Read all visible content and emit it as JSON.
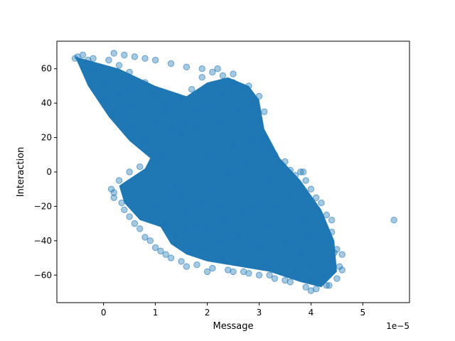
{
  "chart_data": {
    "type": "scatter",
    "xlabel": "Message",
    "ylabel": "Interaction",
    "x_offset_label": "1e−5",
    "x_scale": 1e-05,
    "xlim": [
      -0.9,
      5.9
    ],
    "ylim": [
      -76,
      76
    ],
    "x_ticks": [
      0,
      1,
      2,
      3,
      4,
      5
    ],
    "y_ticks": [
      -60,
      -40,
      -20,
      0,
      20,
      40,
      60
    ],
    "x_tick_labels": [
      "0",
      "1",
      "2",
      "3",
      "4",
      "5"
    ],
    "y_tick_labels": [
      "−60",
      "−40",
      "−20",
      "0",
      "20",
      "40",
      "60"
    ],
    "grid": false,
    "legend": "none",
    "marker_color": "#1f77b4",
    "marker_alpha": 0.4,
    "points": [
      [
        -0.55,
        66
      ],
      [
        -0.4,
        68
      ],
      [
        -0.3,
        65
      ],
      [
        -0.5,
        67
      ],
      [
        -0.2,
        66
      ],
      [
        0.1,
        65
      ],
      [
        0.3,
        62
      ],
      [
        0.5,
        58
      ],
      [
        0.8,
        52
      ],
      [
        1.0,
        46
      ],
      [
        1.2,
        40
      ],
      [
        1.5,
        42
      ],
      [
        1.7,
        48
      ],
      [
        1.9,
        55
      ],
      [
        2.1,
        58
      ],
      [
        2.3,
        56
      ],
      [
        2.5,
        52
      ],
      [
        2.7,
        48
      ],
      [
        2.9,
        40
      ],
      [
        3.0,
        30
      ],
      [
        3.1,
        20
      ],
      [
        3.2,
        12
      ],
      [
        3.4,
        5
      ],
      [
        3.6,
        1
      ],
      [
        3.8,
        0
      ],
      [
        3.9,
        -5
      ],
      [
        4.1,
        -15
      ],
      [
        4.3,
        -25
      ],
      [
        4.4,
        -35
      ],
      [
        4.5,
        -45
      ],
      [
        4.55,
        -55
      ],
      [
        4.5,
        -62
      ],
      [
        4.3,
        -66
      ],
      [
        4.1,
        -68
      ],
      [
        3.9,
        -67
      ],
      [
        3.6,
        -64
      ],
      [
        3.3,
        -62
      ],
      [
        3.0,
        -60
      ],
      [
        2.7,
        -58
      ],
      [
        2.4,
        -57
      ],
      [
        2.1,
        -56
      ],
      [
        1.8,
        -54
      ],
      [
        1.5,
        -52
      ],
      [
        1.2,
        -48
      ],
      [
        1.0,
        -44
      ],
      [
        0.8,
        -38
      ],
      [
        0.6,
        -30
      ],
      [
        0.4,
        -22
      ],
      [
        0.2,
        -15
      ],
      [
        0.15,
        -10
      ],
      [
        0.3,
        -5
      ],
      [
        0.5,
        0
      ],
      [
        0.7,
        3
      ],
      [
        1.0,
        5
      ],
      [
        0.2,
        69
      ],
      [
        0.4,
        68
      ],
      [
        0.6,
        67
      ],
      [
        0.8,
        66
      ],
      [
        1.0,
        65
      ],
      [
        1.3,
        63
      ],
      [
        1.6,
        61
      ],
      [
        1.9,
        60
      ],
      [
        2.2,
        60
      ],
      [
        2.5,
        57
      ],
      [
        2.8,
        50
      ],
      [
        3.0,
        44
      ],
      [
        3.1,
        35
      ],
      [
        3.3,
        10
      ],
      [
        3.5,
        6
      ],
      [
        3.7,
        -2
      ],
      [
        4.0,
        -10
      ],
      [
        4.2,
        -18
      ],
      [
        4.4,
        -28
      ],
      [
        4.6,
        -48
      ],
      [
        4.6,
        -57
      ],
      [
        4.35,
        -66
      ],
      [
        4.0,
        -69
      ],
      [
        3.5,
        -63
      ],
      [
        3.2,
        -60
      ],
      [
        2.8,
        -59
      ],
      [
        2.5,
        -58
      ],
      [
        2.0,
        -58
      ],
      [
        1.6,
        -55
      ],
      [
        1.3,
        -50
      ],
      [
        1.1,
        -46
      ],
      [
        0.9,
        -40
      ],
      [
        0.7,
        -33
      ],
      [
        0.5,
        -26
      ],
      [
        0.35,
        -18
      ],
      [
        0.2,
        -12
      ],
      [
        5.6,
        -28
      ],
      [
        3.85,
        0
      ],
      [
        1.55,
        -25
      ],
      [
        1.8,
        -30
      ],
      [
        2.0,
        -35
      ],
      [
        2.2,
        -40
      ],
      [
        1.7,
        -45
      ],
      [
        1.4,
        -38
      ],
      [
        1.2,
        -30
      ],
      [
        1.0,
        -20
      ],
      [
        1.5,
        -15
      ],
      [
        2.0,
        -10
      ],
      [
        2.5,
        -12
      ],
      [
        2.9,
        -20
      ],
      [
        3.2,
        -30
      ],
      [
        3.5,
        -40
      ],
      [
        3.8,
        -48
      ],
      [
        4.0,
        -55
      ],
      [
        3.7,
        -58
      ],
      [
        3.4,
        -52
      ],
      [
        3.0,
        -45
      ],
      [
        2.6,
        -38
      ],
      [
        2.3,
        -28
      ],
      [
        1.9,
        -18
      ],
      [
        1.4,
        -8
      ],
      [
        1.1,
        10
      ],
      [
        1.4,
        18
      ],
      [
        1.8,
        25
      ],
      [
        2.2,
        30
      ],
      [
        2.6,
        35
      ],
      [
        2.9,
        20
      ],
      [
        2.5,
        15
      ],
      [
        2.0,
        10
      ],
      [
        1.5,
        22
      ],
      [
        1.0,
        30
      ],
      [
        0.6,
        38
      ],
      [
        0.3,
        45
      ],
      [
        0.0,
        52
      ],
      [
        -0.2,
        58
      ],
      [
        0.5,
        50
      ],
      [
        0.9,
        44
      ],
      [
        1.2,
        36
      ],
      [
        1.6,
        30
      ],
      [
        2.0,
        40
      ],
      [
        2.3,
        46
      ],
      [
        2.6,
        44
      ],
      [
        1.8,
        35
      ],
      [
        1.3,
        25
      ],
      [
        0.8,
        18
      ],
      [
        0.5,
        25
      ],
      [
        0.2,
        35
      ],
      [
        0.0,
        42
      ],
      [
        2.4,
        0
      ],
      [
        2.8,
        5
      ],
      [
        3.2,
        -5
      ],
      [
        3.6,
        -15
      ],
      [
        3.9,
        -28
      ],
      [
        4.2,
        -40
      ],
      [
        4.4,
        -52
      ],
      [
        3.3,
        -20
      ],
      [
        2.7,
        -25
      ],
      [
        2.2,
        -20
      ],
      [
        1.6,
        -35
      ],
      [
        1.9,
        -45
      ],
      [
        2.3,
        -50
      ],
      [
        2.7,
        -52
      ],
      [
        3.1,
        -55
      ],
      [
        4.25,
        -60
      ],
      [
        4.45,
        -47
      ],
      [
        3.95,
        -38
      ]
    ]
  }
}
